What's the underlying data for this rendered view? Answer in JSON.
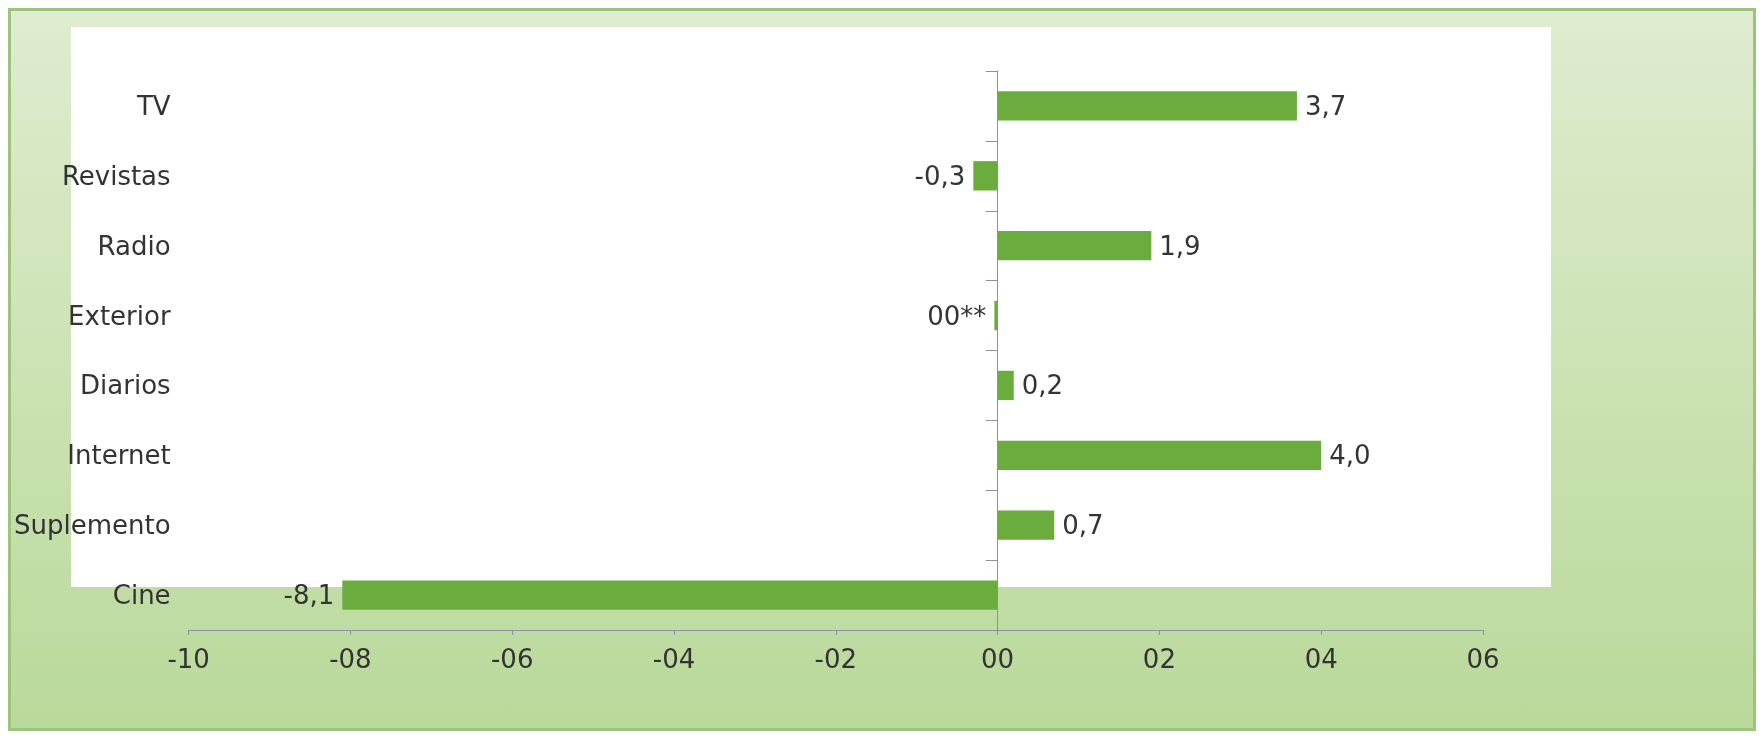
{
  "chart_data": {
    "type": "bar",
    "orientation": "horizontal",
    "categories": [
      "TV",
      "Revistas",
      "Radio",
      "Exterior",
      "Diarios",
      "Internet",
      "Suplemento",
      "Cine"
    ],
    "values": [
      3.7,
      -0.3,
      1.9,
      -0.04,
      0.2,
      4.0,
      0.7,
      -8.1
    ],
    "value_labels": [
      "3,7",
      "-0,3",
      "1,9",
      "00**",
      "0,2",
      "4,0",
      "0,7",
      "-8,1"
    ],
    "color": "#6aac3e",
    "xlim": [
      -10,
      6
    ],
    "xticks": [
      {
        "value": -10,
        "label": "-10"
      },
      {
        "value": -8,
        "label": "-08"
      },
      {
        "value": -6,
        "label": "-06"
      },
      {
        "value": -4,
        "label": "-04"
      },
      {
        "value": -2,
        "label": "-02"
      },
      {
        "value": 0,
        "label": "00"
      },
      {
        "value": 2,
        "label": "02"
      },
      {
        "value": 4,
        "label": "04"
      },
      {
        "value": 6,
        "label": "06"
      }
    ]
  }
}
